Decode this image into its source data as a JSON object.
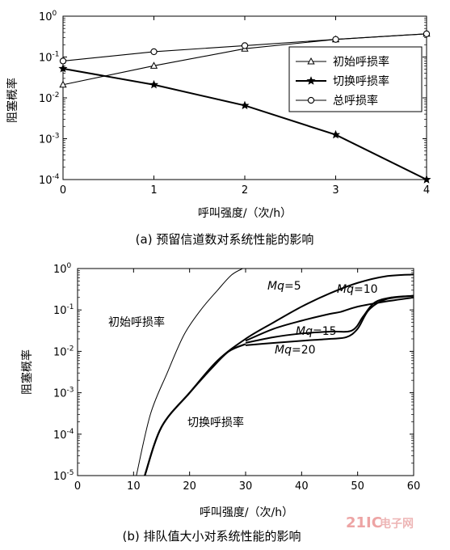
{
  "chart_data": [
    {
      "type": "line",
      "caption": "(a) 预留信道数对系统性能的影响",
      "xlabel": "呼叫强度/（次/h）",
      "ylabel": "阻塞概率",
      "xlim": [
        0,
        4
      ],
      "ylim": [
        0.0001,
        1
      ],
      "yscale": "log",
      "x_ticks": [
        "0",
        "1",
        "2",
        "3",
        "4"
      ],
      "y_ticks": [
        {
          "base": "10",
          "exp": "0"
        },
        {
          "base": "10",
          "exp": "-1"
        },
        {
          "base": "10",
          "exp": "-2"
        },
        {
          "base": "10",
          "exp": "-3"
        },
        {
          "base": "10",
          "exp": "-4"
        }
      ],
      "legend_position": "right",
      "x": [
        0,
        1,
        2,
        3,
        4
      ],
      "series": [
        {
          "name": "初始呼损率",
          "marker": "triangle",
          "values": [
            0.021,
            0.061,
            0.16,
            0.27,
            0.37
          ]
        },
        {
          "name": "切换呼损率",
          "marker": "star",
          "values": [
            0.052,
            0.021,
            0.0065,
            0.00125,
            0.0001
          ]
        },
        {
          "name": "总呼损率",
          "marker": "circle",
          "values": [
            0.08,
            0.135,
            0.19,
            0.27,
            0.37
          ]
        }
      ]
    },
    {
      "type": "line",
      "caption": "(b) 排队值大小对系统性能的影响",
      "xlabel": "呼叫强度/（次/h）",
      "ylabel": "阻塞概率",
      "xlim": [
        0,
        60
      ],
      "ylim": [
        1e-05,
        1
      ],
      "yscale": "log",
      "x_ticks": [
        "0",
        "10",
        "20",
        "30",
        "40",
        "50",
        "60"
      ],
      "y_ticks": [
        {
          "base": "10",
          "exp": "0"
        },
        {
          "base": "10",
          "exp": "-1"
        },
        {
          "base": "10",
          "exp": "-2"
        },
        {
          "base": "10",
          "exp": "-3"
        },
        {
          "base": "10",
          "exp": "-4"
        },
        {
          "base": "10",
          "exp": "-5"
        }
      ],
      "annotations": {
        "initial": "初始呼损率",
        "handoff": "切换呼损率",
        "mq5": "=5",
        "mq10": "=10",
        "mq15": "=15",
        "mq20": "=20",
        "mq_prefix": "Mq"
      },
      "series": [
        {
          "key": "initial",
          "x": [
            10.5,
            13,
            16,
            19,
            22,
            25,
            27.5,
            29.5
          ],
          "values": [
            1e-05,
            0.0003,
            0.003,
            0.025,
            0.1,
            0.3,
            0.7,
            1.0
          ]
        },
        {
          "key": "mq5",
          "x": [
            12,
            15,
            20,
            25,
            30,
            35,
            40,
            45,
            50,
            55,
            60
          ],
          "values": [
            1e-05,
            0.00015,
            0.001,
            0.006,
            0.02,
            0.05,
            0.12,
            0.25,
            0.45,
            0.65,
            0.72
          ]
        },
        {
          "key": "mq10",
          "x": [
            30,
            35,
            40,
            45,
            47,
            50,
            55,
            60
          ],
          "values": [
            0.018,
            0.035,
            0.055,
            0.08,
            0.09,
            0.12,
            0.16,
            0.2
          ]
        },
        {
          "key": "mq15",
          "x": [
            30,
            35,
            40,
            45,
            49,
            51,
            53,
            56,
            60
          ],
          "values": [
            0.016,
            0.022,
            0.027,
            0.03,
            0.032,
            0.07,
            0.15,
            0.2,
            0.22
          ]
        },
        {
          "key": "mq20",
          "x": [
            30,
            35,
            40,
            45,
            48,
            50,
            52,
            55,
            60
          ],
          "values": [
            0.014,
            0.016,
            0.018,
            0.02,
            0.022,
            0.035,
            0.1,
            0.18,
            0.22
          ]
        },
        {
          "key": "handoff_shared",
          "x": [
            12,
            15,
            20,
            24,
            27,
            30
          ],
          "values": [
            1e-05,
            0.00015,
            0.001,
            0.004,
            0.01,
            0.015
          ]
        }
      ]
    }
  ],
  "watermark": {
    "brand": "21IC",
    "text": "电子网"
  }
}
